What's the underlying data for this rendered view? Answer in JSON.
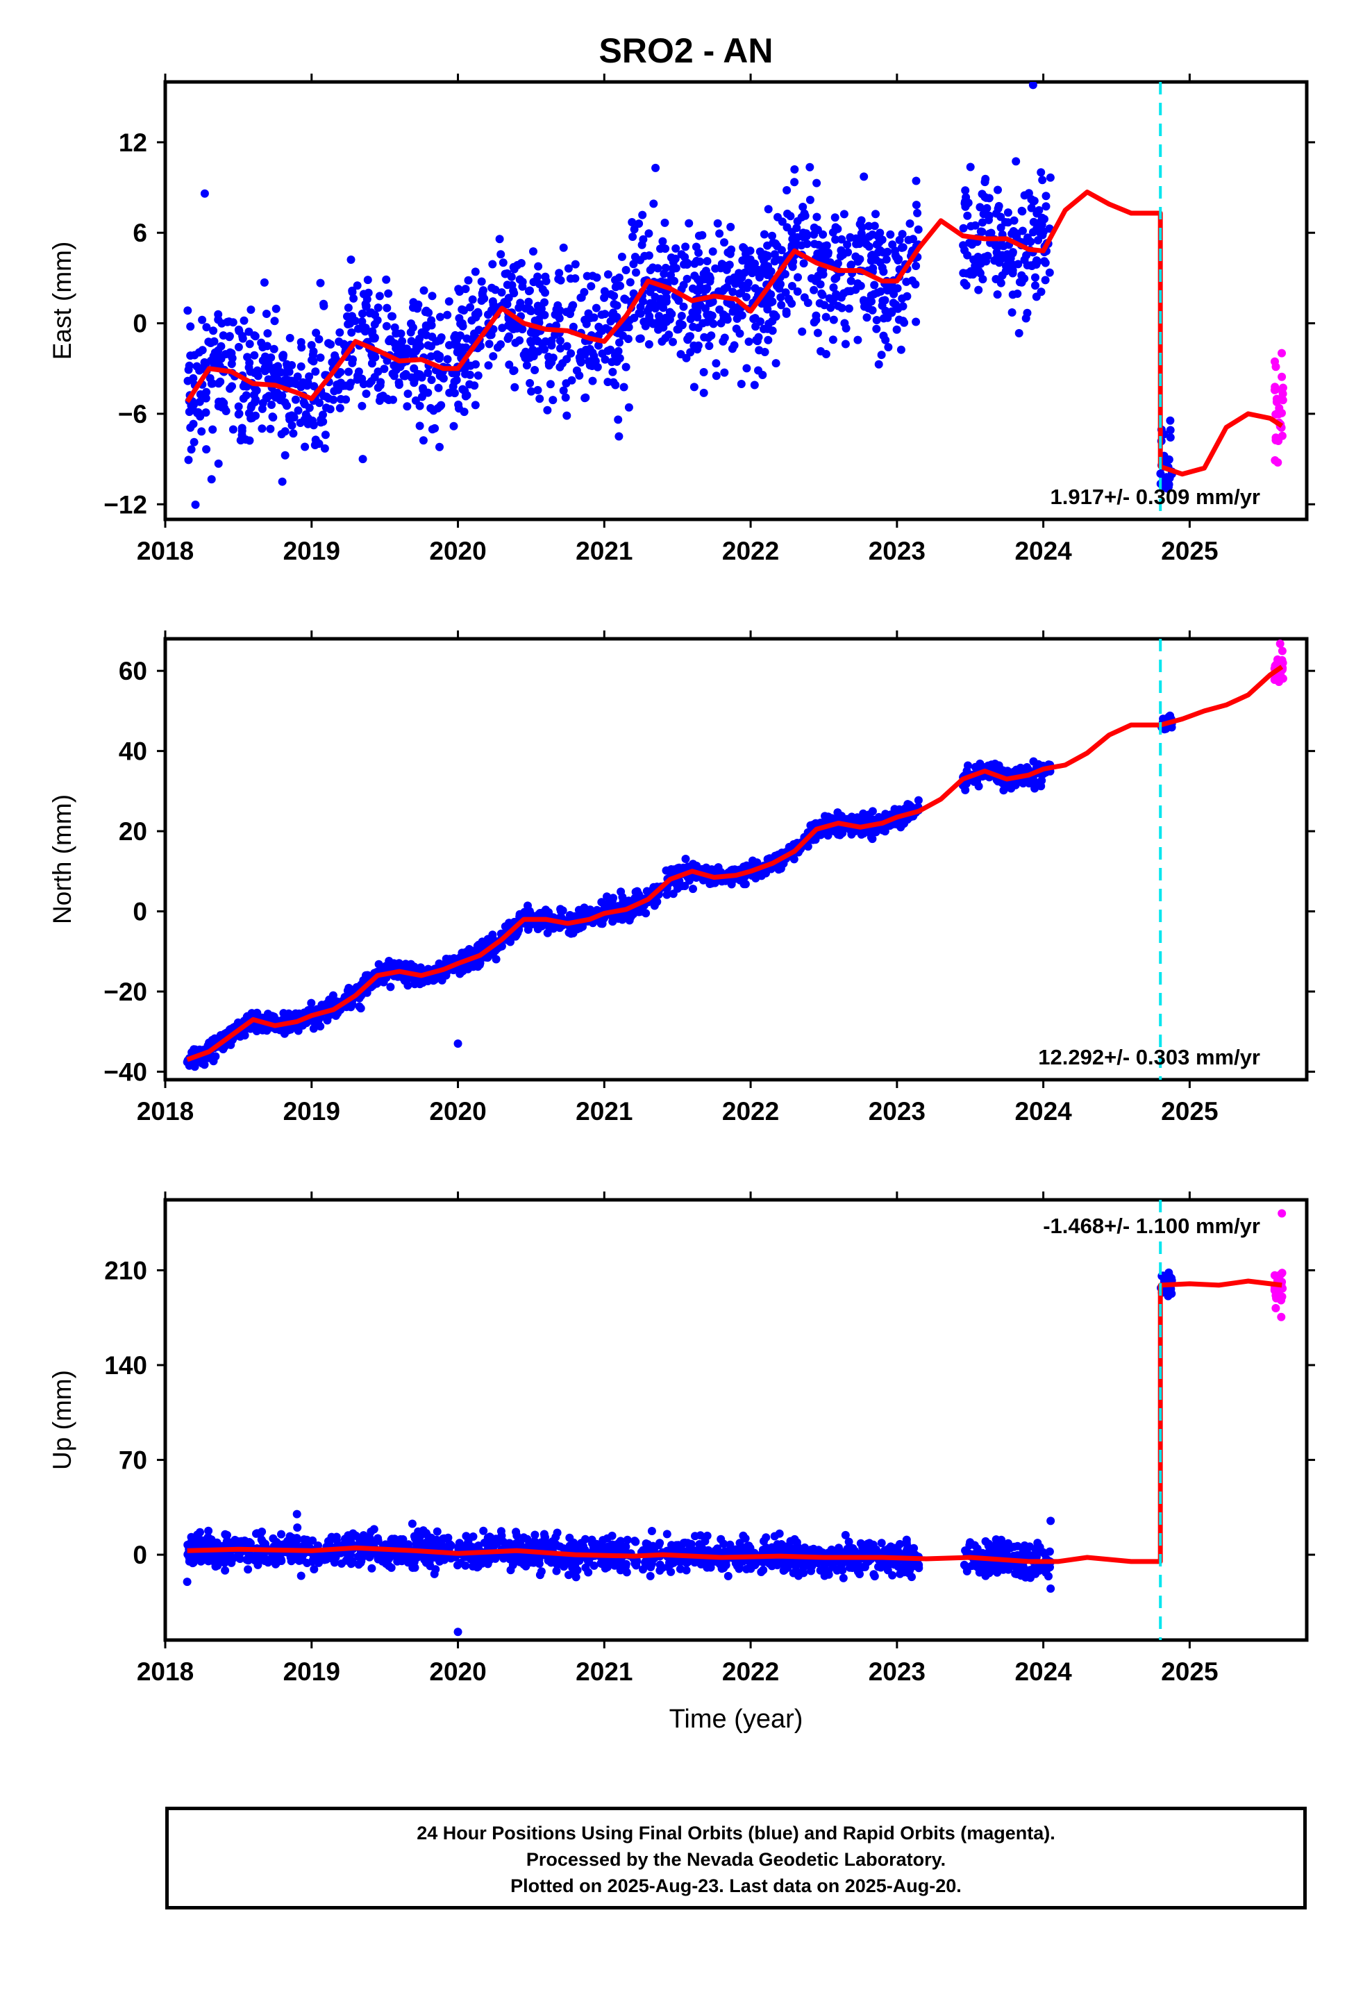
{
  "title": "SRO2 - AN",
  "xlabel": "Time (year)",
  "footer": [
    "24 Hour Positions Using Final Orbits (blue) and Rapid Orbits (magenta).",
    "Processed by the Nevada Geodetic Laboratory.",
    "Plotted on 2025-Aug-23. Last data on 2025-Aug-20."
  ],
  "colors": {
    "final": "#0000ff",
    "rapid": "#ff00ff",
    "model": "#ff0000",
    "break": "#00e5ee"
  },
  "chart_data": [
    {
      "type": "scatter",
      "ylabel": "East (mm)",
      "xlim": [
        2018,
        2025.8
      ],
      "ylim": [
        -13,
        16
      ],
      "xticks": [
        "2018",
        "2019",
        "2020",
        "2021",
        "2022",
        "2023",
        "2024",
        "2025"
      ],
      "yticks": [
        "12",
        "6",
        "0",
        "−6",
        "−12"
      ],
      "ytick_values": [
        12,
        6,
        0,
        -6,
        -12
      ],
      "rate": "1.917+/- 0.309 mm/yr",
      "break_x": 2024.8,
      "model_x": [
        2018.15,
        2018.3,
        2018.45,
        2018.6,
        2018.75,
        2018.9,
        2019.0,
        2019.15,
        2019.3,
        2019.45,
        2019.6,
        2019.75,
        2019.9,
        2020.0,
        2020.15,
        2020.3,
        2020.45,
        2020.6,
        2020.75,
        2020.9,
        2021.0,
        2021.15,
        2021.3,
        2021.45,
        2021.6,
        2021.75,
        2021.9,
        2022.0,
        2022.15,
        2022.3,
        2022.45,
        2022.6,
        2022.75,
        2022.9,
        2023.0,
        2023.15,
        2023.3,
        2023.45,
        2023.6,
        2023.75,
        2023.9,
        2024.0,
        2024.15,
        2024.3,
        2024.45,
        2024.6,
        2024.8,
        2024.8,
        2024.95,
        2025.1,
        2025.25,
        2025.4,
        2025.55,
        2025.63
      ],
      "model_y": [
        -5.2,
        -3.0,
        -3.2,
        -4.0,
        -4.1,
        -4.6,
        -5.0,
        -3.2,
        -1.2,
        -1.8,
        -2.5,
        -2.4,
        -3.0,
        -3.0,
        -1.0,
        1.0,
        0.0,
        -0.4,
        -0.5,
        -1.0,
        -1.2,
        0.5,
        2.8,
        2.3,
        1.5,
        1.8,
        1.6,
        0.8,
        2.8,
        4.8,
        4.0,
        3.5,
        3.5,
        2.8,
        2.8,
        5.0,
        6.8,
        5.8,
        5.6,
        5.6,
        4.9,
        4.8,
        7.5,
        8.7,
        7.9,
        7.3,
        7.3,
        -9.5,
        -10.0,
        -9.6,
        -6.9,
        -6.0,
        -6.3,
        -6.8
      ],
      "final": {
        "segments": [
          {
            "x0": 2018.15,
            "x1": 2023.15,
            "noise": 2.2
          },
          {
            "x0": 2023.45,
            "x1": 2024.05,
            "noise": 2.0
          },
          {
            "x0": 2024.8,
            "x1": 2024.88,
            "noise": 2.0
          }
        ],
        "points_per_year": 300,
        "outliers": [
          [
            2018.27,
            8.6
          ],
          [
            2023.93,
            15.8
          ],
          [
            2021.35,
            10.3
          ],
          [
            2018.8,
            -10.5
          ],
          [
            2021.1,
            -7.5
          ],
          [
            2019.35,
            -9.0
          ],
          [
            2022.3,
            10.2
          ]
        ]
      },
      "rapid": {
        "segments": [
          {
            "x0": 2025.58,
            "x1": 2025.64,
            "noise": 2.2
          }
        ],
        "points_per_year": 450
      }
    },
    {
      "type": "scatter",
      "ylabel": "North (mm)",
      "xlim": [
        2018,
        2025.8
      ],
      "ylim": [
        -42,
        68
      ],
      "xticks": [
        "2018",
        "2019",
        "2020",
        "2021",
        "2022",
        "2023",
        "2024",
        "2025"
      ],
      "yticks": [
        "60",
        "40",
        "20",
        "0",
        "−20",
        "−40"
      ],
      "ytick_values": [
        60,
        40,
        20,
        0,
        -20,
        -40
      ],
      "rate": "12.292+/- 0.303 mm/yr",
      "break_x": 2024.8,
      "model_x": [
        2018.15,
        2018.3,
        2018.45,
        2018.6,
        2018.75,
        2018.9,
        2019.0,
        2019.15,
        2019.3,
        2019.45,
        2019.6,
        2019.75,
        2019.9,
        2020.0,
        2020.15,
        2020.3,
        2020.45,
        2020.6,
        2020.75,
        2020.9,
        2021.0,
        2021.15,
        2021.3,
        2021.45,
        2021.6,
        2021.75,
        2021.9,
        2022.0,
        2022.15,
        2022.3,
        2022.45,
        2022.6,
        2022.75,
        2022.9,
        2023.0,
        2023.15,
        2023.3,
        2023.45,
        2023.6,
        2023.75,
        2023.9,
        2024.0,
        2024.15,
        2024.3,
        2024.45,
        2024.6,
        2024.8,
        2024.95,
        2025.1,
        2025.25,
        2025.4,
        2025.55,
        2025.63
      ],
      "model_y": [
        -37,
        -35,
        -31,
        -27,
        -28.5,
        -27.5,
        -26,
        -24.5,
        -21,
        -16,
        -15,
        -16,
        -14.5,
        -13,
        -11,
        -7,
        -2,
        -2,
        -3,
        -2,
        -0.5,
        0.5,
        3,
        8,
        10,
        8.5,
        9,
        10,
        12,
        15,
        20.5,
        22,
        21,
        22,
        23.5,
        25,
        28,
        33,
        35,
        33,
        34,
        35.5,
        36.5,
        39.5,
        44,
        46.5,
        46.5,
        48,
        50,
        51.5,
        54,
        59,
        61
      ],
      "final": {
        "segments": [
          {
            "x0": 2018.15,
            "x1": 2023.15,
            "noise": 1.3
          },
          {
            "x0": 2023.45,
            "x1": 2024.05,
            "noise": 1.3
          },
          {
            "x0": 2024.8,
            "x1": 2024.88,
            "noise": 1.0
          }
        ],
        "points_per_year": 300,
        "outliers": [
          [
            2020.0,
            -33
          ]
        ]
      },
      "rapid": {
        "segments": [
          {
            "x0": 2025.58,
            "x1": 2025.64,
            "noise": 1.6
          }
        ],
        "points_per_year": 450
      }
    },
    {
      "type": "scatter",
      "ylabel": "Up (mm)",
      "xlim": [
        2018,
        2025.8
      ],
      "ylim": [
        -63,
        262
      ],
      "xticks": [
        "2018",
        "2019",
        "2020",
        "2021",
        "2022",
        "2023",
        "2024",
        "2025"
      ],
      "yticks": [
        "210",
        "140",
        "70",
        "0"
      ],
      "ytick_values": [
        210,
        140,
        70,
        0
      ],
      "rate": "-1.468+/- 1.100 mm/yr",
      "break_x": 2024.8,
      "model_x": [
        2018.15,
        2018.5,
        2019.0,
        2019.3,
        2019.7,
        2020.0,
        2020.4,
        2020.8,
        2021.2,
        2021.4,
        2021.8,
        2022.2,
        2022.5,
        2022.9,
        2023.2,
        2023.5,
        2023.9,
        2024.1,
        2024.3,
        2024.6,
        2024.8,
        2024.8,
        2025.0,
        2025.2,
        2025.4,
        2025.63
      ],
      "model_y": [
        3,
        4,
        3,
        5,
        3,
        1,
        3,
        0,
        -1,
        0,
        -2,
        -1,
        -2,
        -2,
        -3,
        -2,
        -5,
        -5,
        -2,
        -5,
        -5,
        199,
        200,
        199,
        202,
        199
      ],
      "final": {
        "segments": [
          {
            "x0": 2018.15,
            "x1": 2023.15,
            "noise": 6.0
          },
          {
            "x0": 2023.45,
            "x1": 2024.05,
            "noise": 6.5
          },
          {
            "x0": 2024.8,
            "x1": 2024.88,
            "noise": 5.0
          }
        ],
        "points_per_year": 300,
        "outliers": [
          [
            2020.0,
            -57
          ],
          [
            2018.9,
            30
          ],
          [
            2024.05,
            25
          ],
          [
            2024.05,
            -25
          ],
          [
            2018.15,
            -20
          ]
        ]
      },
      "rapid": {
        "segments": [
          {
            "x0": 2025.58,
            "x1": 2025.64,
            "noise": 8.0
          }
        ],
        "points_per_year": 450,
        "outliers": [
          [
            2025.63,
            252
          ]
        ]
      }
    }
  ]
}
